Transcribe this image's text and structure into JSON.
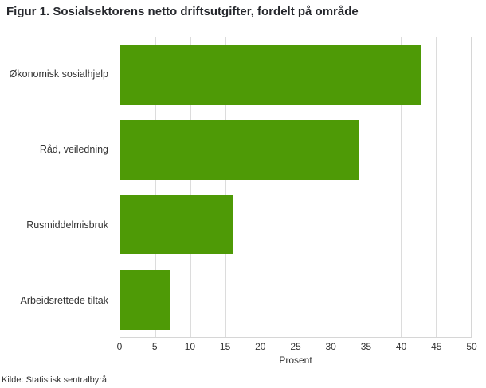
{
  "title": "Figur 1. Sosialsektorens netto driftsutgifter, fordelt på område",
  "source": "Kilde: Statistisk sentralbyrå.",
  "chart_data": {
    "type": "bar",
    "orientation": "horizontal",
    "title": "Figur 1. Sosialsektorens netto driftsutgifter, fordelt på område",
    "categories": [
      "Økonomisk sosialhjelp",
      "Råd, veiledning",
      "Rusmiddelmisbruk",
      "Arbeidsrettede tiltak"
    ],
    "values": [
      43,
      34,
      16,
      7
    ],
    "xlabel": "Prosent",
    "ylabel": "",
    "xlim": [
      0,
      50
    ],
    "xticks": [
      0,
      5,
      10,
      15,
      20,
      25,
      30,
      35,
      40,
      45,
      50
    ],
    "grid": true,
    "bar_color": "#4e9a06",
    "source": "Kilde: Statistisk sentralbyrå."
  }
}
